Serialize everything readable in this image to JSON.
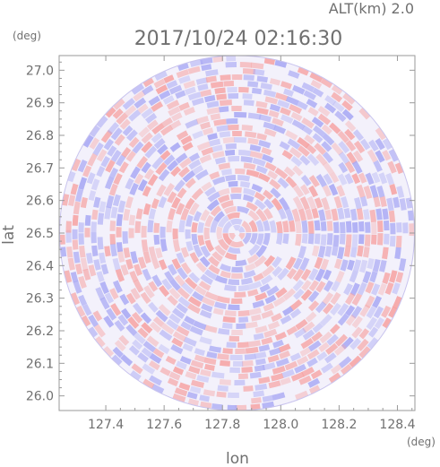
{
  "header": {
    "alt_label": "ALT(km)  2.0",
    "timestamp": "2017/10/24 02:16:30",
    "y_unit": "(deg)",
    "x_unit": "(deg)"
  },
  "chart_data": {
    "type": "heatmap",
    "title": "2017/10/24 02:16:30",
    "subtitle": "ALT(km)  2.0",
    "xlabel": "lon",
    "ylabel": "lat",
    "x_unit": "(deg)",
    "y_unit": "(deg)",
    "xlim": [
      127.24,
      128.46
    ],
    "ylim": [
      25.955,
      27.045
    ],
    "x_ticks": [
      127.4,
      127.6,
      127.8,
      128.0,
      128.2,
      128.4
    ],
    "x_tick_labels": [
      "127.4",
      "127.6",
      "127.8",
      "128.0",
      "128.2",
      "128.4"
    ],
    "y_ticks": [
      26.0,
      26.1,
      26.2,
      26.3,
      26.4,
      26.5,
      26.6,
      26.7,
      26.8,
      26.9,
      27.0
    ],
    "y_tick_labels": [
      "26.0",
      "26.1",
      "26.2",
      "26.3",
      "26.4",
      "26.5",
      "26.6",
      "26.7",
      "26.8",
      "26.9",
      "27.0"
    ],
    "radar_center": {
      "lon": 127.85,
      "lat": 26.5
    },
    "radar_radius_deg_lat": 0.545,
    "field_colors": {
      "positive": "#f6a3a3",
      "negative": "#a9a9f4",
      "neutral": "#ffffff"
    },
    "grid": false
  }
}
